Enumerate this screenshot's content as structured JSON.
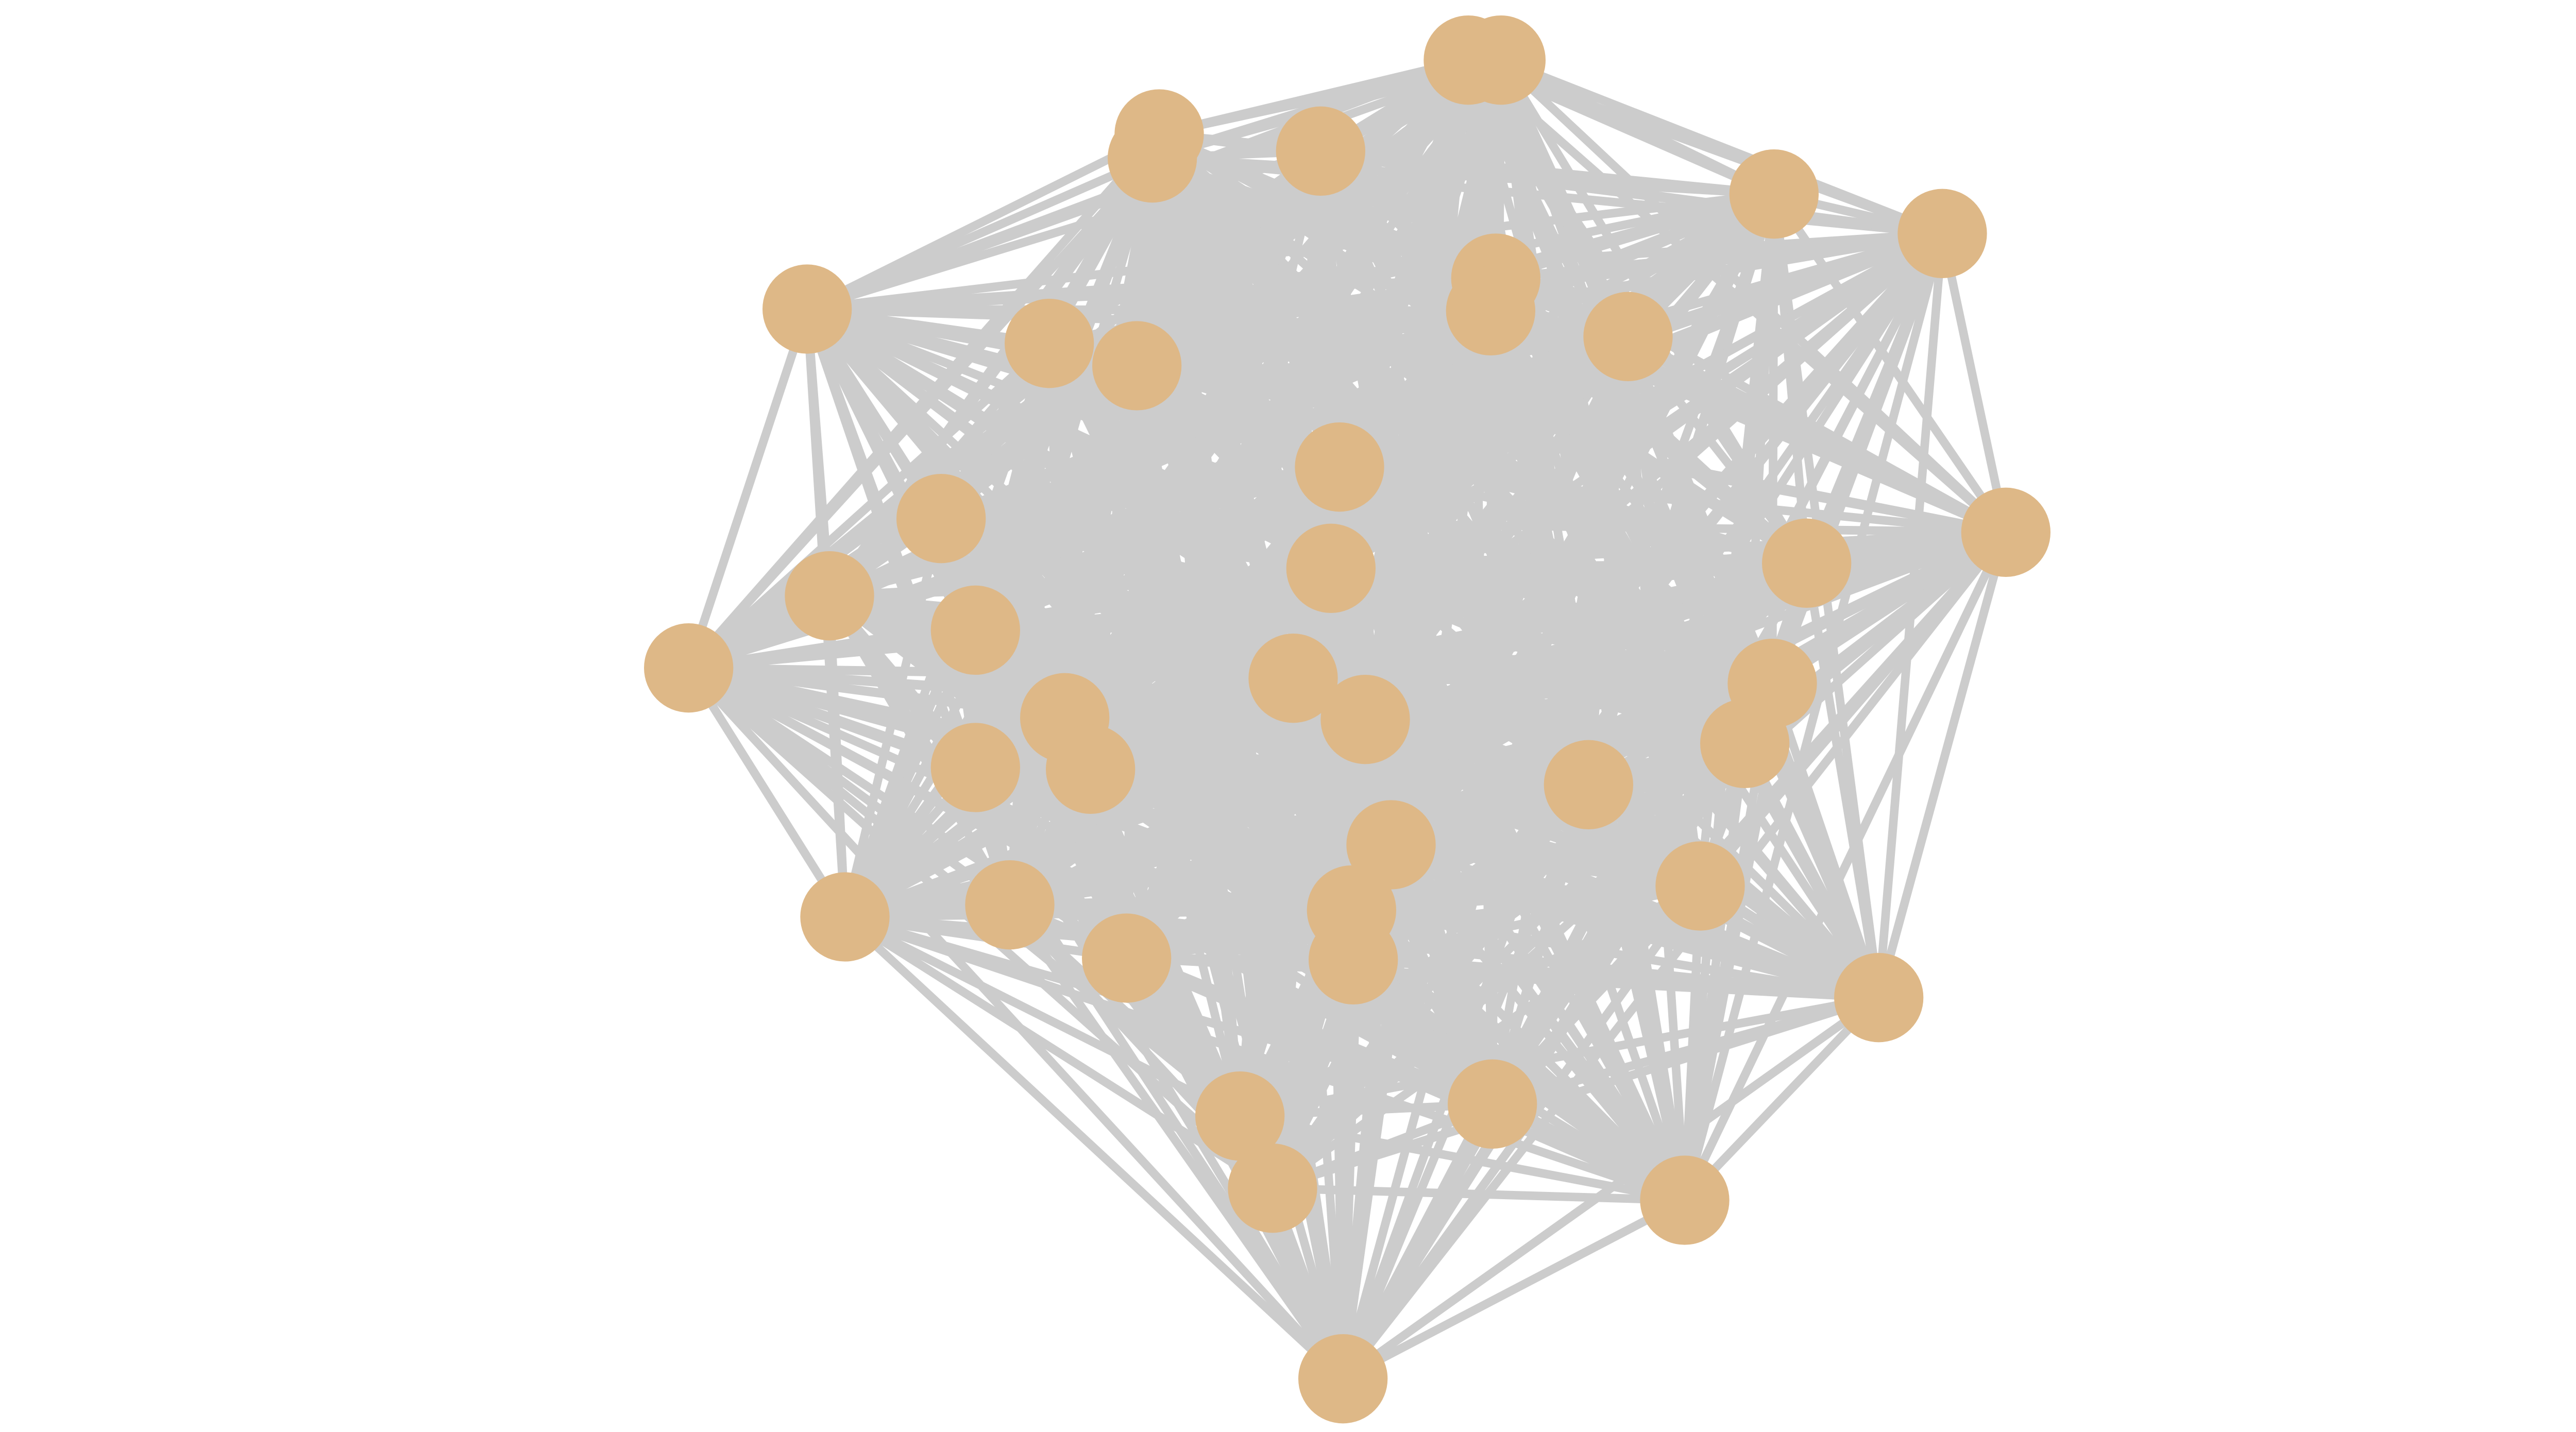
{
  "diagram": {
    "type": "network-graph",
    "node_count": 42,
    "edge_style": "dense, near-complete graph",
    "colors": {
      "background": "#ffffff",
      "edge": "#cccccc",
      "node": "#deb887"
    }
  }
}
